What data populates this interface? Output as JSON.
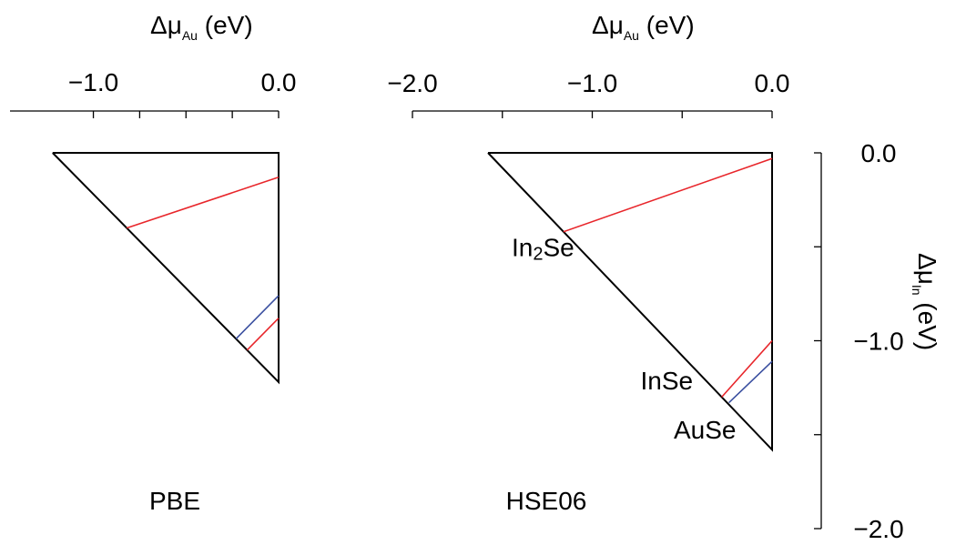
{
  "chart_data": [
    {
      "type": "line",
      "panel_label": "PBE",
      "xlabel": {
        "main": "Δμ",
        "sub": "Au",
        "unit": " (eV)"
      },
      "xlim": [
        -1.45,
        0.0
      ],
      "x_ticks": [
        -1.0,
        -0.75,
        -0.5,
        -0.25,
        0.0
      ],
      "x_tick_labels": [
        {
          "value": -1.0,
          "label": "−1.0"
        },
        {
          "value": 0.0,
          "label": "0.0"
        }
      ],
      "ylim": [
        -2.0,
        0.0
      ],
      "colors": {
        "boundary": "#000000",
        "red": "#e8262b",
        "blue": "#3a4fa0"
      },
      "series": [
        {
          "role": "boundary",
          "x": [
            -1.22,
            0.0,
            0.0,
            -1.22
          ],
          "y": [
            0.0,
            0.0,
            -1.22,
            0.0
          ]
        },
        {
          "role": "red",
          "x": [
            -0.82,
            0.0
          ],
          "y": [
            -0.4,
            -0.13
          ]
        },
        {
          "role": "blue",
          "x": [
            -0.23,
            0.0
          ],
          "y": [
            -0.99,
            -0.76
          ]
        },
        {
          "role": "red",
          "x": [
            -0.17,
            0.0
          ],
          "y": [
            -1.05,
            -0.88
          ]
        }
      ]
    },
    {
      "type": "line",
      "panel_label": "HSE06",
      "xlabel": {
        "main": "Δμ",
        "sub": "Au",
        "unit": " (eV)"
      },
      "ylabel": {
        "main": "Δμ",
        "sub": "In",
        "unit": " (eV)"
      },
      "xlim": [
        -2.0,
        0.0
      ],
      "x_ticks": [
        -2.0,
        -1.5,
        -1.0,
        -0.5,
        0.0
      ],
      "x_tick_labels": [
        {
          "value": -2.0,
          "label": "−2.0"
        },
        {
          "value": -1.0,
          "label": "−1.0"
        },
        {
          "value": 0.0,
          "label": "0.0"
        }
      ],
      "ylim": [
        -2.0,
        0.0
      ],
      "y_ticks": [
        0.0,
        -0.5,
        -1.0,
        -1.5,
        -2.0
      ],
      "y_tick_labels": [
        {
          "value": 0.0,
          "label": "0.0"
        },
        {
          "value": -1.0,
          "label": "−1.0"
        },
        {
          "value": -2.0,
          "label": "−2.0"
        }
      ],
      "colors": {
        "boundary": "#000000",
        "red": "#e8262b",
        "blue": "#3a4fa0"
      },
      "series": [
        {
          "role": "boundary",
          "x": [
            -1.58,
            0.0,
            0.0,
            -1.58
          ],
          "y": [
            0.0,
            0.0,
            -1.58,
            0.0
          ]
        },
        {
          "role": "red",
          "x": [
            -1.16,
            0.0
          ],
          "y": [
            -0.42,
            -0.03
          ]
        },
        {
          "role": "red",
          "x": [
            -0.28,
            0.0
          ],
          "y": [
            -1.3,
            -1.0
          ]
        },
        {
          "role": "blue",
          "x": [
            -0.24,
            0.0
          ],
          "y": [
            -1.33,
            -1.11
          ]
        }
      ],
      "annotations": [
        {
          "text": "In",
          "sub": "2",
          "rest": "Se",
          "x": -1.1,
          "y": -0.55
        },
        {
          "text": "InSe",
          "sub": "",
          "rest": "",
          "x": -0.44,
          "y": -1.26
        },
        {
          "text": "AuSe",
          "sub": "",
          "rest": "",
          "x": -0.2,
          "y": -1.52
        }
      ]
    }
  ]
}
